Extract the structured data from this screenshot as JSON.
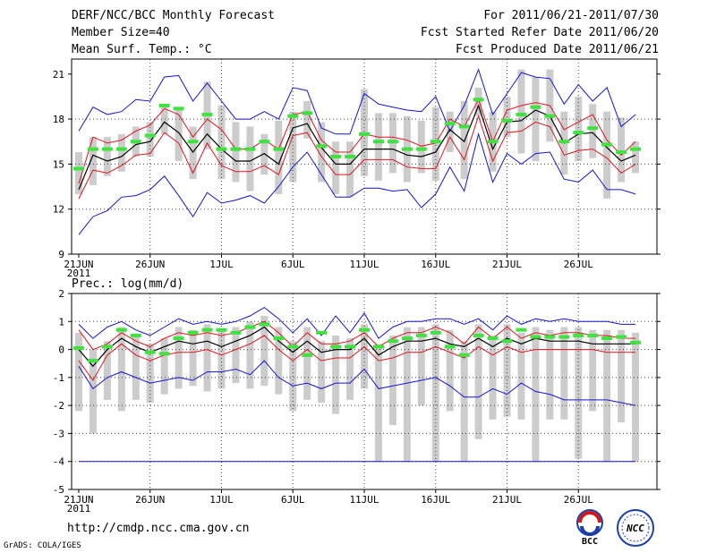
{
  "header": {
    "title": "DERF/NCC/BCC Monthly Forecast",
    "member_size": "Member Size=40",
    "variable": "Mean Surf. Temp.: °C",
    "period": "For 2011/06/21-2011/07/30",
    "started": "Fcst Started Refer Date 2011/06/20",
    "produced": "Fcst Produced Date 2011/06/21"
  },
  "footer": {
    "url": "http://cmdp.ncc.cma.gov.cn",
    "grads": "GrADS: COLA/IGES",
    "logo_left": "BCC",
    "logo_right": "NCC"
  },
  "colors": {
    "mean": "#000000",
    "spread": "#e0141e",
    "envelope": "#1414d2",
    "observed": "#3fe23f",
    "box": "#cccccc",
    "grid": "#444444"
  },
  "chart_data": [
    {
      "type": "line",
      "title": "Mean Surf. Temp.: °C",
      "ylim": [
        9,
        22
      ],
      "yticks": [
        9,
        12,
        15,
        18,
        21
      ],
      "xticks": [
        "21JUN",
        "26JUN",
        "1JUL",
        "6JUL",
        "11JUL",
        "16JUL",
        "21JUL",
        "26JUL"
      ],
      "year_label": "2011",
      "x_days": 40,
      "series": [
        {
          "name": "max",
          "values": [
            17.2,
            18.8,
            18.3,
            18.5,
            19.3,
            19.2,
            20.8,
            20.9,
            19.2,
            20.4,
            19.2,
            18,
            18,
            18.5,
            18,
            20.1,
            19.9,
            17.4,
            17,
            17,
            19.7,
            19,
            18.8,
            18.6,
            18.5,
            19.5,
            17.2,
            18.9,
            21.3,
            18.3,
            19.7,
            21.1,
            20.8,
            20.7,
            19,
            20.3,
            19.2,
            20.1,
            17.5,
            18.3
          ]
        },
        {
          "name": "upper",
          "values": [
            13.7,
            16.8,
            16.4,
            16.6,
            17.2,
            17.6,
            18.7,
            18.3,
            16.8,
            18,
            17.3,
            16,
            16,
            16.6,
            16,
            18.3,
            18.5,
            16.6,
            15.8,
            15.8,
            17,
            16.8,
            16.8,
            16.6,
            16.2,
            16.4,
            18,
            17.5,
            19.3,
            16.5,
            18.6,
            18.9,
            19.1,
            18.9,
            17.3,
            17.8,
            18.3,
            16.6,
            15.6,
            16.5
          ]
        },
        {
          "name": "mean",
          "values": [
            13.3,
            15.6,
            15.2,
            15.5,
            16.3,
            16.5,
            17.8,
            17.1,
            15.8,
            17,
            16,
            15.2,
            15.2,
            15.7,
            15,
            17.4,
            17.7,
            16.1,
            15,
            15,
            16,
            16,
            16,
            15.6,
            15.5,
            15.8,
            17.3,
            16.5,
            18.9,
            16,
            17.8,
            17.9,
            18.6,
            18.2,
            16.4,
            17,
            17.1,
            16.1,
            15.2,
            15.6
          ]
        },
        {
          "name": "lower",
          "values": [
            12.7,
            14.6,
            14.4,
            14.9,
            15.6,
            15.7,
            17.1,
            16.4,
            14.4,
            16.4,
            14.9,
            14.5,
            14.5,
            14.9,
            14.3,
            16.9,
            17.1,
            15.5,
            14.3,
            14.3,
            15.3,
            15.3,
            15.3,
            14.8,
            14.7,
            14.7,
            16.8,
            15.3,
            18.2,
            15.2,
            17.1,
            17.2,
            17.8,
            17.5,
            15.6,
            15.9,
            16,
            15.4,
            14.4,
            15
          ]
        },
        {
          "name": "min",
          "values": [
            10.3,
            11.5,
            11.9,
            12.8,
            12.9,
            13.3,
            14.2,
            12.9,
            11.5,
            13.1,
            12.4,
            12.6,
            12.9,
            12.4,
            13.5,
            14.8,
            15.8,
            14.3,
            12.8,
            12.8,
            13.4,
            13.4,
            13.2,
            13.3,
            12.1,
            13,
            14.8,
            13.2,
            17,
            13.8,
            15.7,
            15,
            15.7,
            15.8,
            14,
            13.8,
            14.6,
            13.3,
            13.3,
            13
          ]
        },
        {
          "name": "observed",
          "values": [
            14.7,
            16,
            16,
            16,
            16.5,
            16.9,
            18.9,
            18.7,
            16.5,
            18.3,
            16,
            16,
            16,
            16.5,
            16,
            18.2,
            18.4,
            16.2,
            15.5,
            15.5,
            17,
            16.5,
            16.5,
            16,
            16,
            16.5,
            17.7,
            17.5,
            19.3,
            16.5,
            17.9,
            18.3,
            18.8,
            18.2,
            16.5,
            17.1,
            17.4,
            16.3,
            15.8,
            16
          ]
        },
        {
          "name": "box_top",
          "values": [
            15.8,
            16.8,
            16.8,
            17,
            17.5,
            17.8,
            19,
            18.8,
            17.5,
            20.5,
            18.9,
            17.8,
            17.5,
            17,
            17.9,
            18.5,
            19.2,
            17.8,
            16.5,
            16.5,
            20,
            18.4,
            18.4,
            18.2,
            17.9,
            18.8,
            18.5,
            19.2,
            20.1,
            18.5,
            19.5,
            21.3,
            20.8,
            21.3,
            18.5,
            19.5,
            19,
            18.5,
            18.1,
            16.5
          ]
        },
        {
          "name": "box_bottom",
          "values": [
            13,
            13.6,
            14.2,
            14.5,
            15.5,
            15.5,
            17,
            15.2,
            14,
            16,
            14,
            13.8,
            13.2,
            14.3,
            13,
            13.8,
            16.7,
            13.8,
            13,
            12.8,
            14.2,
            13.9,
            14.4,
            13.8,
            14.4,
            13.9,
            15.8,
            14,
            18.2,
            14.5,
            16.8,
            15.7,
            15.2,
            16.5,
            14.3,
            15.2,
            15.4,
            12.7,
            13.8,
            14.4
          ]
        }
      ]
    },
    {
      "type": "line",
      "title": "Prec.: log(mm/d)",
      "ylim": [
        -5,
        2
      ],
      "yticks": [
        -5,
        -4,
        -3,
        -2,
        -1,
        0,
        1,
        2
      ],
      "xticks": [
        "21JUN",
        "26JUN",
        "1JUL",
        "6JUL",
        "11JUL",
        "16JUL",
        "21JUL",
        "26JUL"
      ],
      "year_label": "2011",
      "x_days": 40,
      "series": [
        {
          "name": "max",
          "values": [
            0.9,
            0.4,
            0.8,
            1,
            0.7,
            0.5,
            0.8,
            1.1,
            0.9,
            1,
            0.9,
            1,
            1.2,
            1.5,
            1.1,
            0.6,
            1.1,
            0.5,
            1.2,
            0.6,
            1.3,
            0.4,
            0.8,
            1,
            1,
            1.1,
            1.1,
            0.9,
            1.1,
            0.7,
            1.2,
            0.9,
            1.1,
            1,
            1.1,
            1,
            1,
            1,
            0.9,
            0.9
          ]
        },
        {
          "name": "upper",
          "values": [
            0.7,
            0,
            0.2,
            0.6,
            0.3,
            0.1,
            0.4,
            0.6,
            0.5,
            0.6,
            0.5,
            0.6,
            0.8,
            1,
            0.6,
            0.1,
            0.6,
            0.2,
            0.2,
            0.3,
            0.6,
            0.1,
            0.4,
            0.6,
            0.6,
            0.8,
            0.6,
            0.2,
            0.8,
            0.4,
            0.8,
            0.4,
            0.6,
            0.5,
            0.6,
            0.6,
            0.5,
            0.5,
            0.4,
            0.4
          ]
        },
        {
          "name": "mean",
          "values": [
            0,
            -0.6,
            0,
            0.4,
            0.1,
            -0.1,
            0.1,
            0.3,
            0.2,
            0.3,
            0.1,
            0.3,
            0.5,
            0.8,
            0.3,
            -0.1,
            0.3,
            -0.1,
            0,
            0,
            0.4,
            -0.2,
            0.1,
            0.3,
            0.3,
            0.4,
            0.2,
            0.1,
            0.4,
            0.1,
            0.4,
            0.2,
            0.4,
            0.3,
            0.3,
            0.3,
            0.2,
            0.2,
            0.2,
            0.2
          ]
        },
        {
          "name": "lower",
          "values": [
            -0.4,
            -1.1,
            -0.2,
            0.2,
            -0.2,
            -0.4,
            -0.2,
            -0.1,
            -0.1,
            0,
            -0.2,
            0,
            0.2,
            0.5,
            0,
            -0.4,
            0,
            -0.4,
            -0.3,
            -0.3,
            0.1,
            -0.4,
            -0.3,
            -0.1,
            -0.1,
            0.1,
            -0.1,
            -0.3,
            0.1,
            -0.2,
            0.1,
            -0.1,
            0,
            0,
            0,
            0,
            0,
            -0.1,
            -0.1,
            -0.1
          ]
        },
        {
          "name": "min",
          "values": [
            -0.6,
            -1.4,
            -1,
            -0.8,
            -1,
            -1.2,
            -1.1,
            -1,
            -1.1,
            -0.8,
            -0.8,
            -0.7,
            -0.9,
            -0.4,
            -1,
            -1.3,
            -1.2,
            -1.4,
            -1.2,
            -1.2,
            -0.7,
            -1.4,
            -1.3,
            -1.2,
            -1.1,
            -1,
            -1.3,
            -1.7,
            -1.7,
            -1.4,
            -1.6,
            -1.2,
            -1.5,
            -1.6,
            -1.8,
            -1.8,
            -1.8,
            -1.8,
            -1.9,
            -2
          ]
        },
        {
          "name": "min_bound",
          "values": [
            -4,
            -4,
            -4,
            -4,
            -4,
            -4,
            -4,
            -4,
            -4,
            -4,
            -4,
            -4,
            -4,
            -4,
            -4,
            -4,
            -4,
            -4,
            -4,
            -4,
            -4,
            -4,
            -4,
            -4,
            -4,
            -4,
            -4,
            -4,
            -4,
            -4,
            -4,
            -4,
            -4,
            -4,
            -4,
            -4,
            -4,
            -4,
            -4,
            -4
          ]
        },
        {
          "name": "observed",
          "values": [
            0.05,
            -0.4,
            0.1,
            0.7,
            0.5,
            -0.1,
            -0.15,
            0.4,
            0.6,
            0.7,
            0.7,
            0.6,
            0.8,
            0.9,
            0.4,
            0.1,
            -0.2,
            0.6,
            0.1,
            0.1,
            0.7,
            0.1,
            0.3,
            0.4,
            0.5,
            0.6,
            0.1,
            -0.2,
            0.5,
            0.4,
            0.3,
            0.7,
            0.45,
            0.45,
            0.45,
            0.5,
            0.5,
            0.4,
            0.45,
            0.25
          ]
        },
        {
          "name": "box_top",
          "values": [
            0.6,
            0,
            0.3,
            0.8,
            0.5,
            0.2,
            0.4,
            0.8,
            0.7,
            0.9,
            0.7,
            0.8,
            1,
            1.2,
            0.8,
            0.3,
            0.8,
            0.3,
            0.5,
            0.4,
            0.9,
            0.2,
            0.5,
            0.8,
            0.8,
            0.9,
            0.7,
            0.3,
            0.9,
            0.5,
            0.9,
            0.6,
            0.8,
            0.7,
            0.8,
            0.8,
            0.7,
            0.7,
            0.7,
            0.6
          ]
        },
        {
          "name": "box_bottom",
          "values": [
            -2.2,
            -3,
            -1.8,
            -2.2,
            -1.8,
            -1.9,
            -1.6,
            -1.4,
            -1.3,
            -1.5,
            -1.4,
            -1.2,
            -1.4,
            -1.3,
            -1.6,
            -2.2,
            -1.8,
            -1.9,
            -2.3,
            -1.8,
            -1.4,
            -4,
            -2.7,
            -4,
            -2,
            -4,
            -2.2,
            -4,
            -3.2,
            -2.5,
            -2.4,
            -2.5,
            -4,
            -2.5,
            -2.5,
            -3.9,
            -2.2,
            -4,
            -2.6,
            -4
          ]
        }
      ]
    }
  ]
}
